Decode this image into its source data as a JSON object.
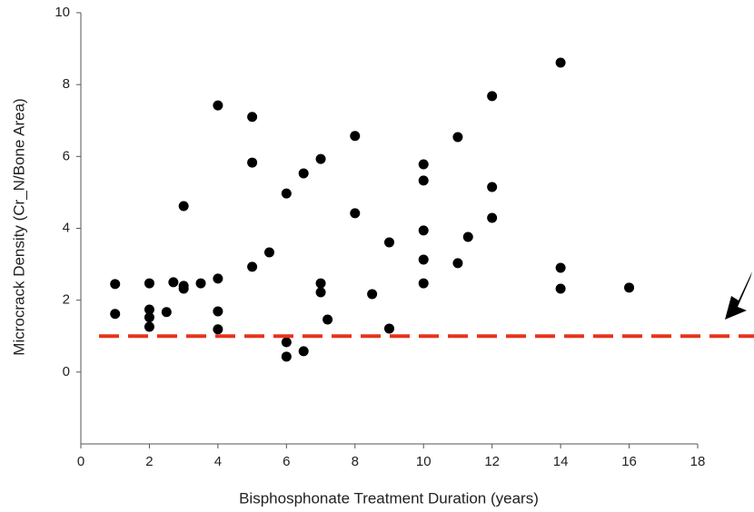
{
  "chart_data": {
    "type": "scatter",
    "xlabel": "Bisphosphonate Treatment Duration (years)",
    "ylabel": "Microcrack Density (Cr_N/Bone Area)",
    "x": [
      1,
      1,
      2,
      2,
      2,
      2,
      2.5,
      2.7,
      3,
      3,
      3,
      3.5,
      4,
      4,
      4,
      4,
      5,
      5,
      5,
      5.5,
      6,
      6,
      6,
      6.5,
      6.5,
      7,
      7,
      7,
      7.2,
      8,
      8,
      8.5,
      9,
      9,
      10,
      10,
      10,
      10,
      10,
      11,
      11,
      11.3,
      12,
      12,
      12,
      14,
      14,
      14,
      16
    ],
    "series": [
      {
        "color": "#000000",
        "values": [
          2.45,
          1.62,
          2.47,
          1.74,
          1.52,
          1.26,
          1.67,
          2.5,
          2.4,
          2.32,
          4.62,
          2.47,
          7.42,
          2.6,
          1.69,
          1.19,
          7.1,
          5.83,
          2.93,
          3.33,
          4.97,
          0.83,
          0.43,
          5.53,
          0.58,
          5.93,
          2.47,
          2.22,
          1.46,
          6.57,
          4.42,
          2.17,
          3.61,
          1.21,
          5.78,
          5.33,
          3.94,
          3.13,
          2.47,
          6.54,
          3.03,
          3.76,
          7.68,
          5.15,
          4.29,
          8.61,
          2.9,
          2.32,
          2.35
        ]
      }
    ],
    "reference_line": {
      "value": 1,
      "color": "#e8331c"
    },
    "xlim": [
      0,
      18
    ],
    "xticks": [
      0,
      2,
      4,
      6,
      8,
      10,
      12,
      14,
      16,
      18
    ],
    "ylim": [
      -2,
      10
    ],
    "yticks": [
      0,
      2,
      4,
      6,
      8,
      10
    ]
  }
}
